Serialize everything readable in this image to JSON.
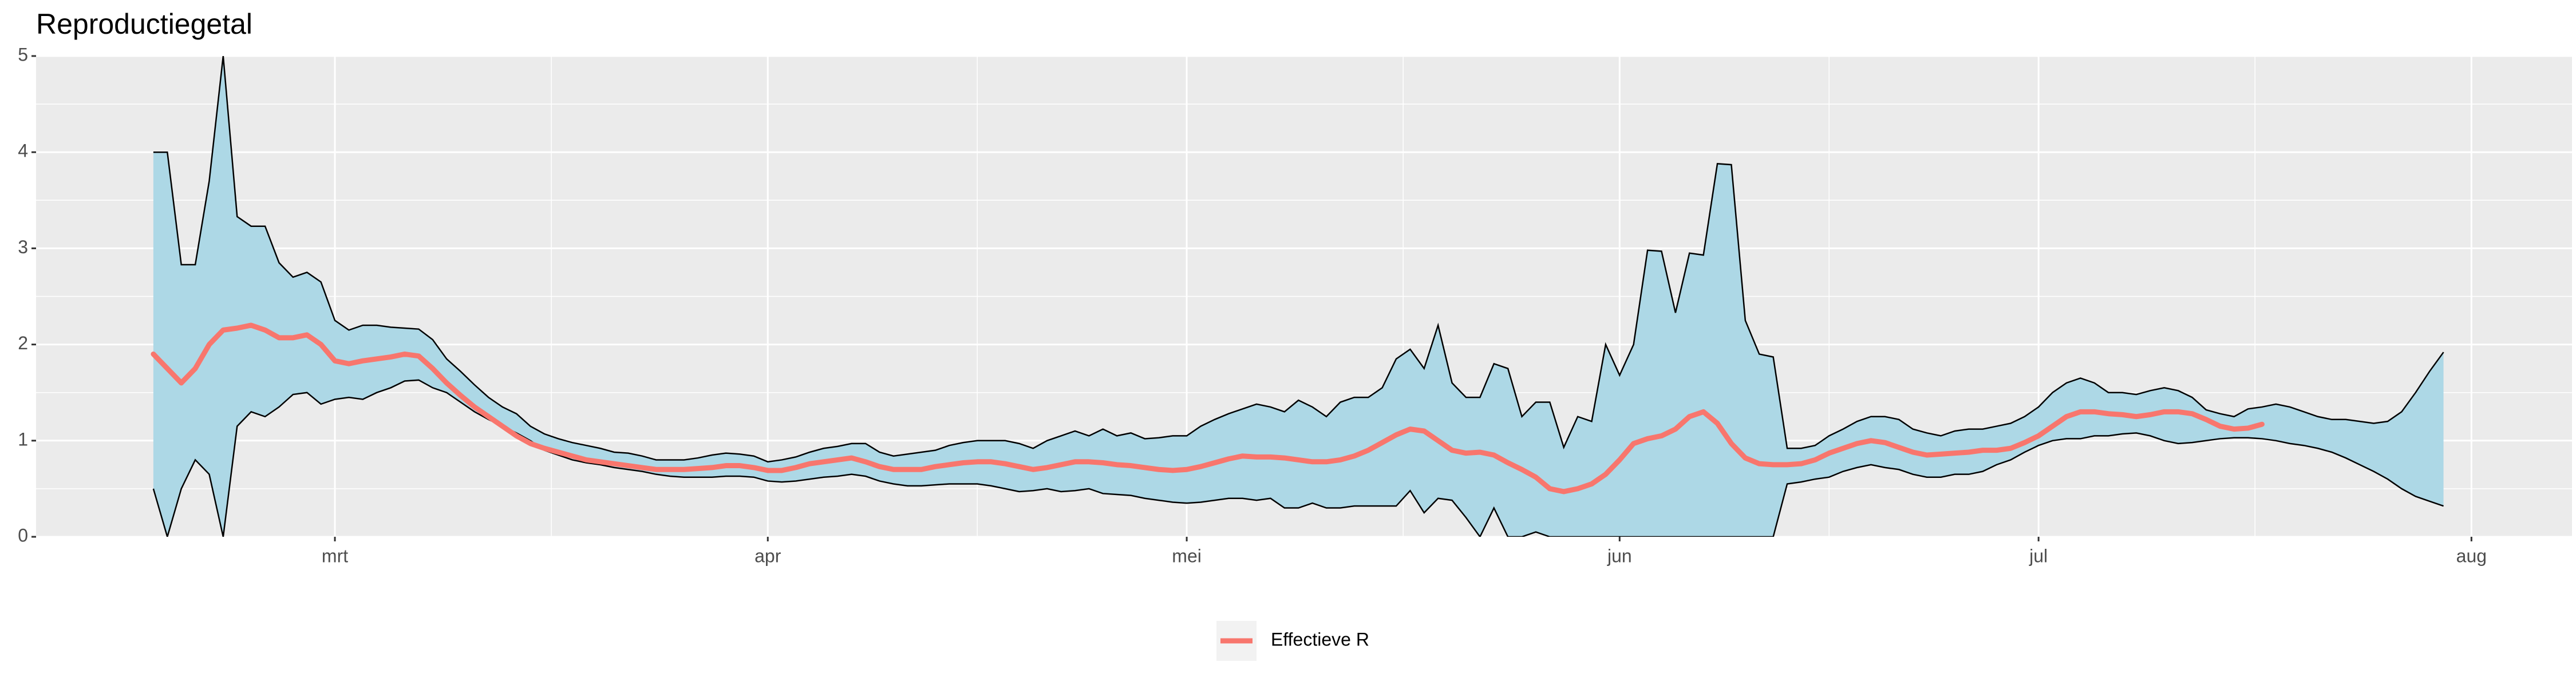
{
  "chart_data": {
    "type": "line",
    "title": "Reproductiegetal",
    "x": [
      48,
      49,
      50,
      51,
      52,
      53,
      54,
      55,
      56,
      57,
      58,
      59,
      60,
      61,
      62,
      63,
      64,
      65,
      66,
      67,
      68,
      69,
      70,
      71,
      72,
      73,
      74,
      75,
      76,
      77,
      78,
      79,
      80,
      81,
      82,
      83,
      84,
      85,
      86,
      87,
      88,
      89,
      90,
      91,
      92,
      93,
      94,
      95,
      96,
      97,
      98,
      99,
      100,
      101,
      102,
      103,
      104,
      105,
      106,
      107,
      108,
      109,
      110,
      111,
      112,
      113,
      114,
      115,
      116,
      117,
      118,
      119,
      120,
      121,
      122,
      123,
      124,
      125,
      126,
      127,
      128,
      129,
      130,
      131,
      132,
      133,
      134,
      135,
      136,
      137,
      138,
      139,
      140,
      141,
      142,
      143,
      144,
      145,
      146,
      147,
      148,
      149,
      150,
      151,
      152,
      153,
      154,
      155,
      156,
      157,
      158,
      159,
      160,
      161,
      162,
      163,
      164,
      165,
      166,
      167,
      168,
      169,
      170,
      171,
      172,
      173,
      174,
      175,
      176,
      177,
      178,
      179,
      180,
      181,
      182,
      183,
      184,
      185,
      186,
      187,
      188,
      189,
      190,
      191,
      192,
      193,
      194,
      195,
      196,
      197,
      198,
      199,
      200,
      201,
      202,
      203,
      204,
      205,
      206,
      207,
      208,
      209,
      210,
      211,
      212
    ],
    "xlim": [
      39.6,
      221.2
    ],
    "xticks": [
      {
        "value": 61,
        "label": "mrt"
      },
      {
        "value": 92,
        "label": "apr"
      },
      {
        "value": 122,
        "label": "mei"
      },
      {
        "value": 153,
        "label": "jun"
      },
      {
        "value": 183,
        "label": "jul"
      },
      {
        "value": 214,
        "label": "aug"
      }
    ],
    "ylim": [
      0,
      5
    ],
    "yticks": [
      0,
      1,
      2,
      3,
      4,
      5
    ],
    "grid": true,
    "legend": "bottom",
    "band": {
      "color": "#add8e6",
      "upper": [
        4.0,
        4.0,
        2.83,
        2.83,
        3.7,
        5.0,
        3.33,
        3.23,
        3.23,
        2.85,
        2.7,
        2.75,
        2.65,
        2.25,
        2.15,
        2.2,
        2.2,
        2.18,
        2.17,
        2.16,
        2.05,
        1.85,
        1.72,
        1.58,
        1.45,
        1.35,
        1.28,
        1.15,
        1.07,
        1.02,
        0.98,
        0.95,
        0.92,
        0.88,
        0.87,
        0.84,
        0.8,
        0.8,
        0.8,
        0.82,
        0.85,
        0.87,
        0.86,
        0.84,
        0.78,
        0.8,
        0.83,
        0.88,
        0.92,
        0.94,
        0.97,
        0.97,
        0.88,
        0.84,
        0.86,
        0.88,
        0.9,
        0.95,
        0.98,
        1.0,
        1.0,
        1.0,
        0.97,
        0.92,
        1.0,
        1.05,
        1.1,
        1.05,
        1.12,
        1.05,
        1.08,
        1.02,
        1.03,
        1.05,
        1.05,
        1.15,
        1.22,
        1.28,
        1.33,
        1.38,
        1.35,
        1.3,
        1.42,
        1.35,
        1.25,
        1.4,
        1.45,
        1.45,
        1.55,
        1.85,
        1.95,
        1.75,
        2.2,
        1.6,
        1.45,
        1.45,
        1.8,
        1.75,
        1.25,
        1.4,
        1.4,
        0.93,
        1.25,
        1.2,
        2.0,
        1.68,
        2.0,
        2.98,
        2.97,
        2.33,
        2.95,
        2.93,
        3.88,
        3.87,
        2.25,
        1.9,
        1.87,
        0.92,
        0.92,
        0.95,
        1.05,
        1.12,
        1.2,
        1.25,
        1.25,
        1.22,
        1.12,
        1.08,
        1.05,
        1.1,
        1.12,
        1.12,
        1.15,
        1.18,
        1.25,
        1.35,
        1.5,
        1.6,
        1.65,
        1.6,
        1.5,
        1.5,
        1.48,
        1.52,
        1.55,
        1.52,
        1.45,
        1.32,
        1.28,
        1.25,
        1.33,
        1.35,
        1.38,
        1.35,
        1.3,
        1.25,
        1.22,
        1.22,
        1.2,
        1.18,
        1.2,
        1.3,
        1.5,
        1.72,
        1.92
      ],
      "lower": [
        0.5,
        0.0,
        0.5,
        0.8,
        0.65,
        0.0,
        1.15,
        1.3,
        1.25,
        1.35,
        1.48,
        1.5,
        1.38,
        1.43,
        1.45,
        1.43,
        1.5,
        1.55,
        1.62,
        1.63,
        1.55,
        1.5,
        1.4,
        1.3,
        1.22,
        1.15,
        1.08,
        1.0,
        0.9,
        0.85,
        0.8,
        0.77,
        0.75,
        0.72,
        0.7,
        0.68,
        0.65,
        0.63,
        0.62,
        0.62,
        0.62,
        0.63,
        0.63,
        0.62,
        0.58,
        0.57,
        0.58,
        0.6,
        0.62,
        0.63,
        0.65,
        0.63,
        0.58,
        0.55,
        0.53,
        0.53,
        0.54,
        0.55,
        0.55,
        0.55,
        0.53,
        0.5,
        0.47,
        0.48,
        0.5,
        0.47,
        0.48,
        0.5,
        0.45,
        0.44,
        0.43,
        0.4,
        0.38,
        0.36,
        0.35,
        0.36,
        0.38,
        0.4,
        0.4,
        0.38,
        0.4,
        0.3,
        0.3,
        0.35,
        0.3,
        0.3,
        0.32,
        0.32,
        0.32,
        0.32,
        0.48,
        0.25,
        0.4,
        0.38,
        0.2,
        0.0,
        0.3,
        0.0,
        0.0,
        0.05,
        0,
        0,
        0,
        0,
        0,
        0,
        0,
        0,
        0,
        0,
        0,
        0,
        0,
        0,
        0,
        0,
        0,
        0.55,
        0.57,
        0.6,
        0.62,
        0.68,
        0.72,
        0.75,
        0.72,
        0.7,
        0.65,
        0.62,
        0.62,
        0.65,
        0.65,
        0.68,
        0.75,
        0.8,
        0.88,
        0.95,
        1.0,
        1.02,
        1.02,
        1.05,
        1.05,
        1.07,
        1.08,
        1.05,
        1.0,
        0.97,
        0.98,
        1.0,
        1.02,
        1.03,
        1.03,
        1.02,
        1.0,
        0.97,
        0.95,
        0.92,
        0.88,
        0.82,
        0.75,
        0.68,
        0.6,
        0.5,
        0.42,
        0.37,
        0.32
      ]
    },
    "series": [
      {
        "name": "Effectieve R",
        "color": "#F8766D",
        "values": [
          1.9,
          1.75,
          1.6,
          1.75,
          2.0,
          2.15,
          2.17,
          2.2,
          2.15,
          2.07,
          2.07,
          2.1,
          2.0,
          1.83,
          1.8,
          1.83,
          1.85,
          1.87,
          1.9,
          1.88,
          1.75,
          1.6,
          1.47,
          1.35,
          1.25,
          1.15,
          1.05,
          0.97,
          0.92,
          0.88,
          0.84,
          0.8,
          0.78,
          0.76,
          0.74,
          0.72,
          0.7,
          0.7,
          0.7,
          0.71,
          0.72,
          0.74,
          0.74,
          0.72,
          0.69,
          0.69,
          0.72,
          0.76,
          0.78,
          0.8,
          0.82,
          0.78,
          0.73,
          0.7,
          0.7,
          0.7,
          0.73,
          0.75,
          0.77,
          0.78,
          0.78,
          0.76,
          0.73,
          0.7,
          0.72,
          0.75,
          0.78,
          0.78,
          0.77,
          0.75,
          0.74,
          0.72,
          0.7,
          0.69,
          0.7,
          0.73,
          0.77,
          0.81,
          0.84,
          0.83,
          0.83,
          0.82,
          0.8,
          0.78,
          0.78,
          0.8,
          0.84,
          0.9,
          0.98,
          1.06,
          1.12,
          1.1,
          1.0,
          0.9,
          0.87,
          0.88,
          0.85,
          0.77,
          0.7,
          0.62,
          0.5,
          0.47,
          0.5,
          0.55,
          0.65,
          0.8,
          0.97,
          1.02,
          1.05,
          1.12,
          1.25,
          1.3,
          1.18,
          0.97,
          0.82,
          0.76,
          0.75,
          0.75,
          0.76,
          0.8,
          0.87,
          0.92,
          0.97,
          1.0,
          0.98,
          0.93,
          0.88,
          0.85,
          0.86,
          0.87,
          0.88,
          0.9,
          0.9,
          0.92,
          0.98,
          1.05,
          1.15,
          1.25,
          1.3,
          1.3,
          1.28,
          1.27,
          1.25,
          1.27,
          1.3,
          1.3,
          1.28,
          1.22,
          1.15,
          1.12,
          1.13,
          1.17,
          null,
          null,
          null,
          null,
          null,
          null,
          null,
          null,
          null,
          null,
          null,
          null,
          null
        ]
      }
    ]
  }
}
